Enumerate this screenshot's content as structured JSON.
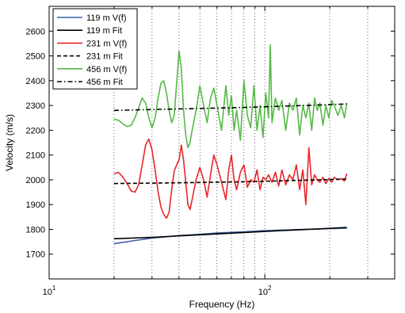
{
  "chart_data": {
    "type": "line",
    "xlabel": "Frequency (Hz)",
    "ylabel": "Velocity (m/s)",
    "xscale": "log",
    "xlim": [
      10,
      400
    ],
    "ylim": [
      1600,
      2700
    ],
    "xticks": [
      {
        "value": 10,
        "base": "10",
        "exp": "1"
      },
      {
        "value": 100,
        "base": "10",
        "exp": "2"
      }
    ],
    "yticks": [
      1700,
      1800,
      1900,
      2000,
      2100,
      2200,
      2300,
      2400,
      2500,
      2600
    ],
    "grid": "x-major-and-minor",
    "legend": {
      "placement": "top-left"
    },
    "series": [
      {
        "name": "119 m V(f)",
        "color": "#3b5ea6",
        "dash": "solid",
        "x": [
          20,
          25,
          30,
          40,
          50,
          60,
          80,
          100,
          150,
          240
        ],
        "y": [
          1742,
          1755,
          1765,
          1775,
          1780,
          1785,
          1790,
          1795,
          1800,
          1805
        ]
      },
      {
        "name": "119 m Fit",
        "color": "#000000",
        "dash": "solid",
        "x": [
          20,
          30,
          50,
          80,
          120,
          180,
          240
        ],
        "y": [
          1762,
          1768,
          1778,
          1787,
          1795,
          1802,
          1808
        ]
      },
      {
        "name": "231 m V(f)",
        "color": "#e8262a",
        "dash": "solid",
        "x": [
          20,
          21,
          22,
          23,
          24,
          25,
          26,
          27,
          28,
          29,
          30,
          31,
          32,
          33,
          34,
          35,
          36,
          37,
          38,
          39,
          40,
          41,
          42,
          43,
          44,
          45,
          46,
          48,
          50,
          52,
          54,
          56,
          58,
          60,
          63,
          66,
          68,
          70,
          72,
          74,
          77,
          80,
          83,
          86,
          89,
          92,
          95,
          98,
          101,
          104,
          108,
          112,
          116,
          120,
          125,
          130,
          135,
          140,
          145,
          150,
          155,
          160,
          165,
          170,
          175,
          180,
          186,
          192,
          198,
          204,
          210,
          218,
          226,
          234,
          240
        ],
        "y": [
          2025,
          2030,
          2010,
          1985,
          1955,
          1950,
          1980,
          2060,
          2140,
          2165,
          2120,
          2040,
          1950,
          1890,
          1860,
          1845,
          1870,
          1960,
          2035,
          2060,
          2080,
          2140,
          2080,
          1990,
          1900,
          1880,
          1920,
          2000,
          2050,
          2000,
          1930,
          2020,
          2100,
          2060,
          1990,
          1920,
          2040,
          2100,
          2000,
          1960,
          2030,
          2060,
          1970,
          2000,
          1990,
          2040,
          1960,
          2010,
          2000,
          2020,
          1990,
          2030,
          1975,
          2040,
          1980,
          2020,
          2000,
          2060,
          1960,
          2040,
          1900,
          2130,
          1980,
          2020,
          2000,
          1990,
          2010,
          1985,
          2005,
          1990,
          2010,
          2000,
          2005,
          1995,
          2025
        ]
      },
      {
        "name": "231 m Fit",
        "color": "#000000",
        "dash": "dashed",
        "x": [
          20,
          40,
          80,
          120,
          180,
          240
        ],
        "y": [
          1985,
          1988,
          1992,
          1996,
          2000,
          2003
        ]
      },
      {
        "name": "456 m V(f)",
        "color": "#56b947",
        "dash": "solid",
        "x": [
          20,
          21,
          22,
          23,
          24,
          25,
          26,
          27,
          28,
          29,
          30,
          31,
          32,
          33,
          34,
          35,
          36,
          37,
          38,
          39,
          40,
          41,
          42,
          43,
          44,
          45,
          46,
          48,
          50,
          52,
          54,
          56,
          58,
          60,
          63,
          66,
          68,
          70,
          72,
          74,
          77,
          80,
          83,
          86,
          89,
          92,
          95,
          98,
          101,
          104,
          106,
          108,
          112,
          116,
          120,
          125,
          130,
          135,
          140,
          145,
          150,
          155,
          160,
          165,
          170,
          175,
          180,
          186,
          192,
          198,
          204,
          210,
          218,
          226,
          234,
          240
        ],
        "y": [
          2245,
          2240,
          2225,
          2215,
          2220,
          2250,
          2290,
          2330,
          2310,
          2250,
          2210,
          2250,
          2330,
          2390,
          2400,
          2350,
          2280,
          2230,
          2260,
          2390,
          2520,
          2450,
          2280,
          2180,
          2130,
          2150,
          2200,
          2280,
          2380,
          2300,
          2230,
          2330,
          2370,
          2300,
          2200,
          2380,
          2260,
          2340,
          2200,
          2280,
          2160,
          2400,
          2260,
          2210,
          2380,
          2200,
          2300,
          2170,
          2350,
          2250,
          2545,
          2230,
          2330,
          2280,
          2320,
          2200,
          2310,
          2280,
          2330,
          2180,
          2300,
          2250,
          2310,
          2200,
          2330,
          2280,
          2310,
          2220,
          2300,
          2250,
          2320,
          2300,
          2260,
          2300,
          2250,
          2310
        ]
      },
      {
        "name": "456 m Fit",
        "color": "#000000",
        "dash": "dashdot",
        "x": [
          20,
          40,
          80,
          120,
          180,
          240
        ],
        "y": [
          2280,
          2286,
          2292,
          2297,
          2302,
          2306
        ]
      }
    ]
  }
}
